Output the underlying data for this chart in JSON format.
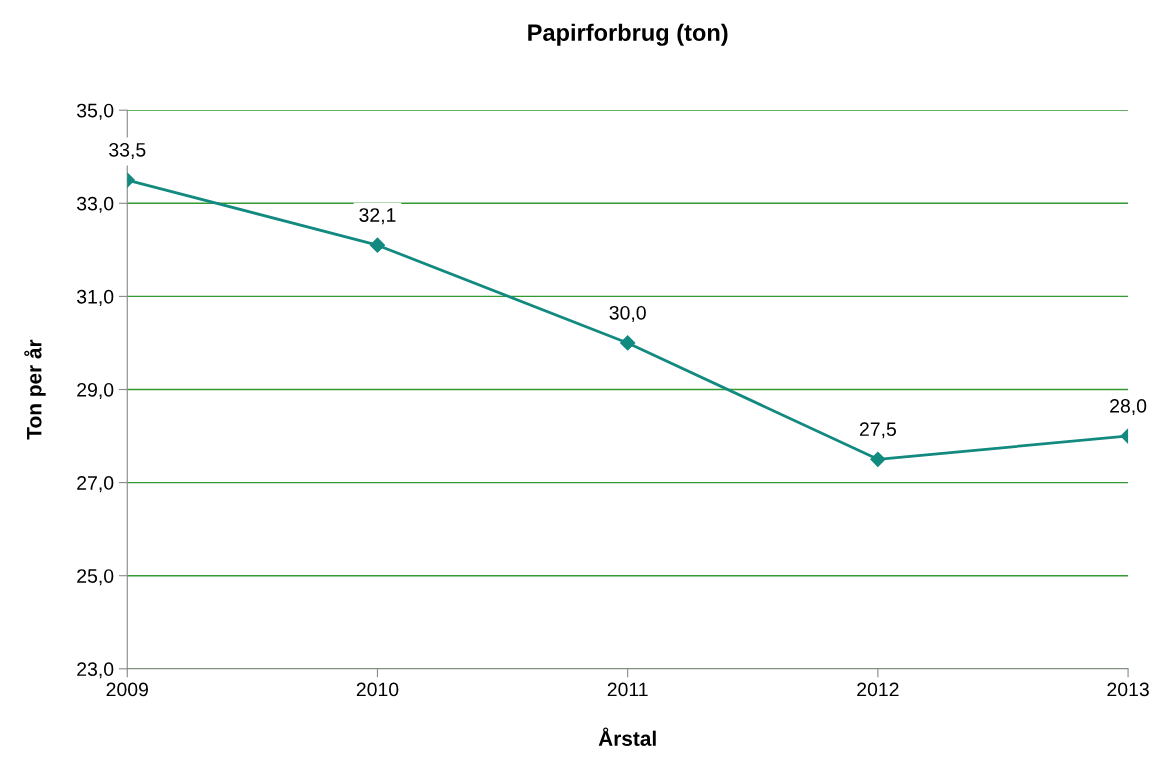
{
  "chart_data": {
    "type": "line",
    "title": "Papirforbrug (ton)",
    "xlabel": "Årstal",
    "ylabel": "Ton per år",
    "categories": [
      "2009",
      "2010",
      "2011",
      "2012",
      "2013"
    ],
    "series": [
      {
        "color": "#128a80",
        "values": [
          33.5,
          32.1,
          30.0,
          27.5,
          28.0
        ],
        "value_labels": [
          "33,5",
          "32,1",
          "30,0",
          "27,5",
          "28,0"
        ]
      }
    ],
    "ylim": [
      23,
      35
    ],
    "yticks": [
      {
        "value": 23,
        "label": "23,0"
      },
      {
        "value": 25,
        "label": "25,0"
      },
      {
        "value": 27,
        "label": "27,0"
      },
      {
        "value": 29,
        "label": "29,0"
      },
      {
        "value": 31,
        "label": "31,0"
      },
      {
        "value": 33,
        "label": "33,0"
      },
      {
        "value": 35,
        "label": "35,0"
      }
    ],
    "grid": "y",
    "marker": "diamond",
    "line_style": "solid",
    "legend": false
  }
}
